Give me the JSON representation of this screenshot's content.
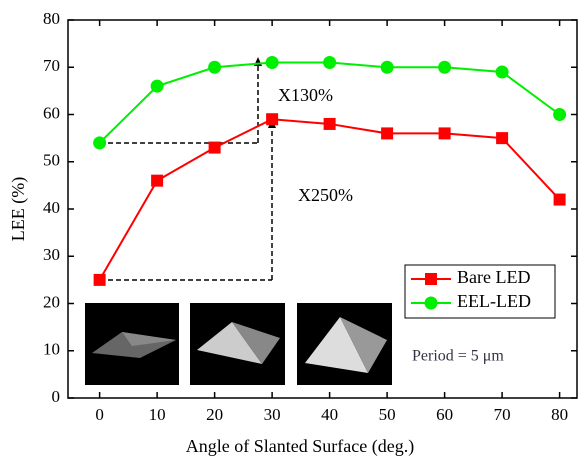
{
  "chart_data": {
    "type": "line",
    "x_label": "Angle of Slanted Surface (deg.)",
    "y_label": "LEE (%)",
    "x": [
      0,
      10,
      20,
      30,
      40,
      50,
      60,
      70,
      80
    ],
    "series": [
      {
        "name": "Bare LED",
        "color": "#ff0000",
        "marker": "square",
        "values": [
          25,
          46,
          53,
          59,
          58,
          56,
          56,
          55,
          42
        ]
      },
      {
        "name": "EEL-LED",
        "color": "#00ee00",
        "marker": "circle",
        "values": [
          54,
          66,
          70,
          71,
          71,
          70,
          70,
          69,
          60
        ]
      }
    ],
    "xlim": [
      -5.5,
      83.2
    ],
    "xticks": [
      0,
      10,
      20,
      30,
      40,
      50,
      60,
      70,
      80
    ],
    "ylim": [
      0,
      80
    ],
    "yticks": [
      0,
      10,
      20,
      30,
      40,
      50,
      60,
      70,
      80
    ],
    "legend": "right",
    "annotations": [
      "X130%",
      "X250%",
      "Period = 5 μm"
    ]
  }
}
